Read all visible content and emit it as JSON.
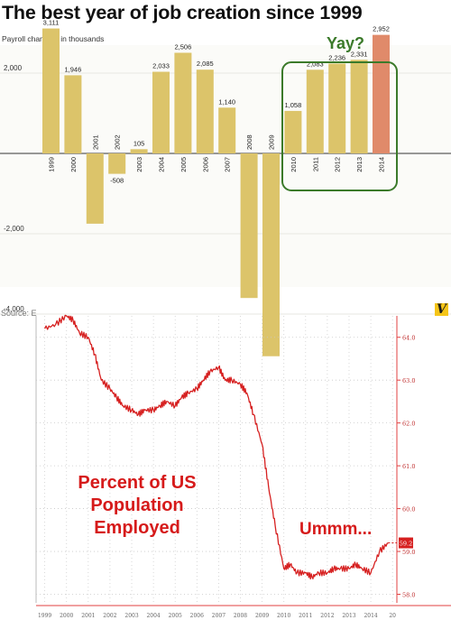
{
  "header": {
    "title": "The best year of job creation since 1999",
    "subtitle": "Payroll changes, in thousands",
    "callout": "Yay?"
  },
  "bottom": {
    "source_label": "Source: E",
    "logo_letter": "V",
    "annotation_main_lines": [
      "Percent of US",
      "Population",
      "Employed"
    ],
    "annotation_end": "Ummm..."
  },
  "colors": {
    "bar": "#dcc46a",
    "highlight_bar": "#e08a6a",
    "callout_box": "#3b7a2a",
    "line": "#d62020",
    "axis_red": "#e04040"
  },
  "chart_data": [
    {
      "type": "bar",
      "title": "The best year of job creation since 1999",
      "subtitle": "Payroll changes, in thousands",
      "categories": [
        "1999",
        "2000",
        "2001",
        "2002",
        "2003",
        "2004",
        "2005",
        "2006",
        "2007",
        "2008",
        "2009",
        "2010",
        "2011",
        "2012",
        "2013",
        "2014"
      ],
      "values": [
        3111,
        1946,
        -1750,
        -508,
        105,
        2033,
        2506,
        2085,
        1140,
        -3600,
        -5050,
        1058,
        2083,
        2236,
        2331,
        2952
      ],
      "data_labels": [
        "3,111",
        "1,946",
        "",
        "-508",
        "105",
        "2,033",
        "2,506",
        "2,085",
        "1,140",
        "",
        "",
        "1,058",
        "2,083",
        "2,236",
        "2,331",
        "2,952"
      ],
      "highlight_category": "2014",
      "y_ticks": [
        2000,
        -2000,
        -4000
      ],
      "y_tick_labels": [
        "2,000",
        "-2,000",
        "-4,000"
      ],
      "ylim": [
        -5200,
        3500
      ]
    },
    {
      "type": "line",
      "annotation": "Percent of US Population Employed",
      "last_value_label": "59.2",
      "ylim": [
        57.8,
        64.5
      ],
      "y_ticks": [
        58.0,
        59.0,
        60.0,
        61.0,
        62.0,
        63.0,
        64.0
      ],
      "y_tick_labels": [
        "58.0",
        "59.0",
        "60.0",
        "61.0",
        "62.0",
        "63.0",
        "64.0"
      ],
      "x_tick_labels": [
        "1999",
        "2000",
        "2001",
        "2002",
        "2003",
        "2004",
        "2005",
        "2006",
        "2007",
        "2008",
        "2009",
        "2010",
        "2011",
        "2012",
        "2013",
        "2014",
        "20"
      ],
      "x": [
        1999.0,
        1999.5,
        2000.0,
        2000.3,
        2000.6,
        2001.0,
        2001.3,
        2001.6,
        2002.0,
        2002.3,
        2002.6,
        2003.0,
        2003.3,
        2003.6,
        2004.0,
        2004.3,
        2004.6,
        2005.0,
        2005.3,
        2005.6,
        2006.0,
        2006.3,
        2006.6,
        2007.0,
        2007.3,
        2007.6,
        2008.0,
        2008.3,
        2008.6,
        2009.0,
        2009.3,
        2009.6,
        2010.0,
        2010.3,
        2010.6,
        2011.0,
        2011.3,
        2011.6,
        2012.0,
        2012.3,
        2012.6,
        2013.0,
        2013.3,
        2013.6,
        2014.0,
        2014.4,
        2014.8
      ],
      "y": [
        64.2,
        64.3,
        64.5,
        64.4,
        64.1,
        64.0,
        63.6,
        63.0,
        62.8,
        62.6,
        62.4,
        62.3,
        62.2,
        62.3,
        62.3,
        62.4,
        62.5,
        62.4,
        62.6,
        62.7,
        62.8,
        63.0,
        63.2,
        63.3,
        63.0,
        63.0,
        62.9,
        62.7,
        62.2,
        61.5,
        60.5,
        59.6,
        58.6,
        58.7,
        58.5,
        58.5,
        58.4,
        58.5,
        58.5,
        58.6,
        58.6,
        58.6,
        58.7,
        58.6,
        58.5,
        59.0,
        59.2
      ]
    }
  ]
}
